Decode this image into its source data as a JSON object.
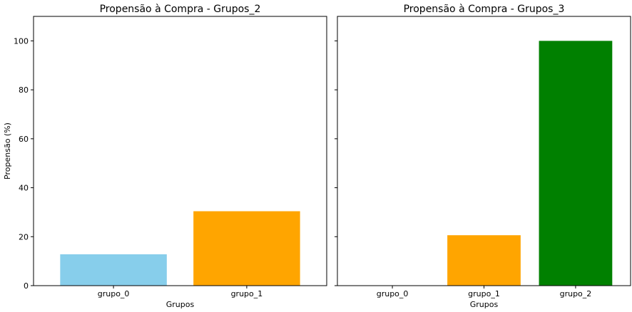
{
  "chart_data": [
    {
      "type": "bar",
      "title": "Propensão à Compra - Grupos_2",
      "xlabel": "Grupos",
      "ylabel": "Propensão (%)",
      "ylim": [
        0,
        110
      ],
      "yticks": [
        "0",
        "20",
        "40",
        "60",
        "80",
        "100"
      ],
      "categories": [
        "grupo_0",
        "grupo_1"
      ],
      "values": [
        12.8,
        30.4
      ],
      "colors": [
        "#87ceeb",
        "#ffa500"
      ]
    },
    {
      "type": "bar",
      "title": "Propensão à Compra - Grupos_3",
      "xlabel": "Grupos",
      "ylabel": "",
      "ylim": [
        0,
        110
      ],
      "categories": [
        "grupo_0",
        "grupo_1",
        "grupo_2"
      ],
      "values": [
        0,
        20.6,
        100
      ],
      "colors": [
        "#87ceeb",
        "#ffa500",
        "#008000"
      ]
    }
  ]
}
